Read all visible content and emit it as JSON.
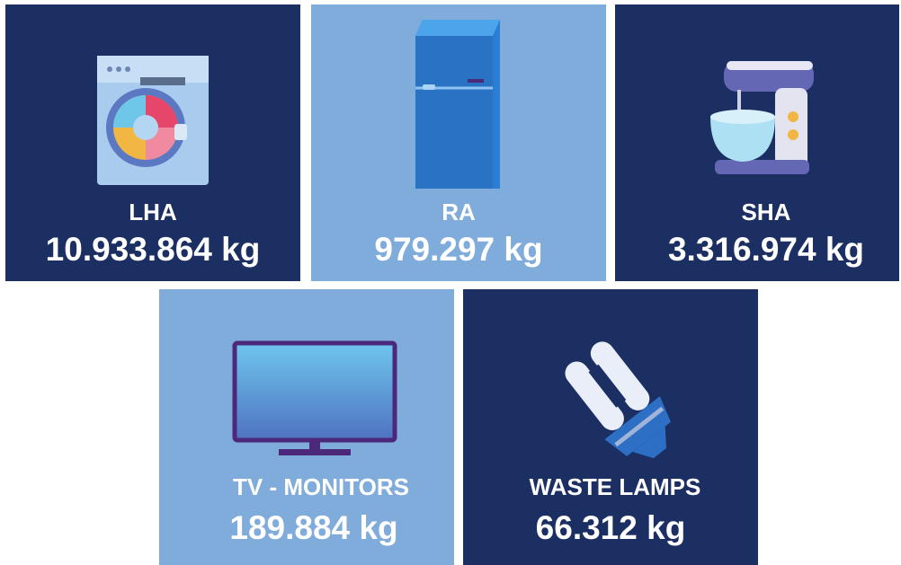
{
  "tiles": [
    {
      "label": "LHA",
      "value": "10.933.864 kg"
    },
    {
      "label": "RA",
      "value": "979.297 kg"
    },
    {
      "label": "SHA",
      "value": "3.316.974 kg"
    },
    {
      "label": "TV - MONITORS",
      "value": "189.884 kg"
    },
    {
      "label": "WASTE LAMPS",
      "value": "66.312 kg"
    }
  ]
}
